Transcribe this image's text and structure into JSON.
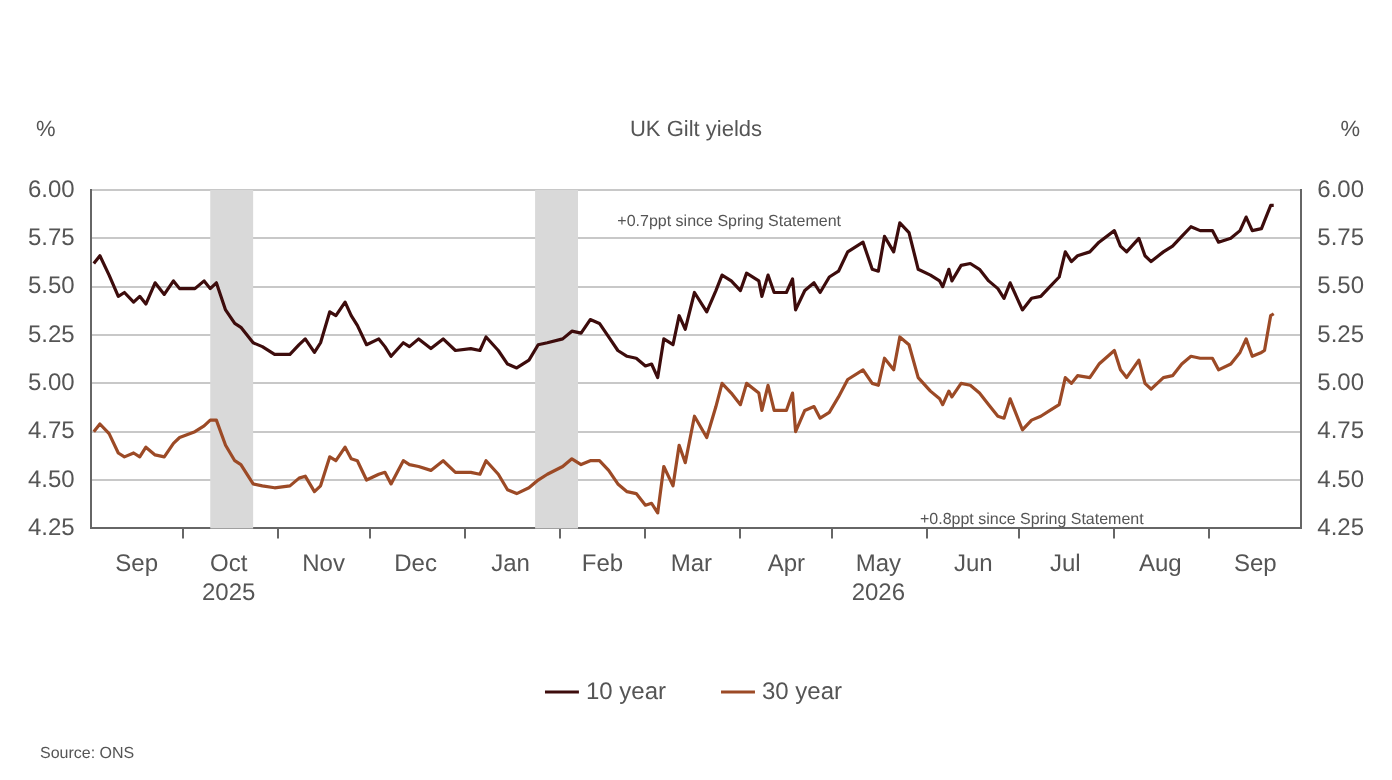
{
  "chart_data": {
    "type": "line",
    "title": "UK Gilt yields",
    "ylabel": "%",
    "y2label": "%",
    "annotations": [
      "+0.7ppt since Spring Statement",
      "+0.8ppt since Spring Statement",
      "Source: ONS"
    ],
    "x": [
      "2025-09-02",
      "2025-09-04",
      "2025-09-07",
      "2025-09-10",
      "2025-09-12",
      "2025-09-15",
      "2025-09-17",
      "2025-09-19",
      "2025-09-22",
      "2025-09-25",
      "2025-09-28",
      "2025-09-30",
      "2025-10-05",
      "2025-10-08",
      "2025-10-10",
      "2025-10-12",
      "2025-10-15",
      "2025-10-18",
      "2025-10-20",
      "2025-10-24",
      "2025-10-27",
      "2025-10-31",
      "2025-11-05",
      "2025-11-08",
      "2025-11-10",
      "2025-11-13",
      "2025-11-15",
      "2025-11-18",
      "2025-11-20",
      "2025-11-23",
      "2025-11-25",
      "2025-11-27",
      "2025-11-30",
      "2025-12-04",
      "2025-12-06",
      "2025-12-08",
      "2025-12-12",
      "2025-12-14",
      "2025-12-17",
      "2025-12-21",
      "2025-12-25",
      "2025-12-29",
      "2026-01-03",
      "2026-01-06",
      "2026-01-08",
      "2026-01-12",
      "2026-01-15",
      "2026-01-18",
      "2026-01-22",
      "2026-01-25",
      "2026-01-28",
      "2026-02-02",
      "2026-02-05",
      "2026-02-08",
      "2026-02-11",
      "2026-02-14",
      "2026-02-17",
      "2026-02-20",
      "2026-02-23",
      "2026-02-26",
      "2026-03-01",
      "2026-03-03",
      "2026-03-05",
      "2026-03-07",
      "2026-03-10",
      "2026-03-12",
      "2026-03-14",
      "2026-03-17",
      "2026-03-21",
      "2026-03-24",
      "2026-03-26",
      "2026-03-29",
      "2026-04-01",
      "2026-04-03",
      "2026-04-07",
      "2026-04-08",
      "2026-04-10",
      "2026-04-12",
      "2026-04-16",
      "2026-04-18",
      "2026-04-19",
      "2026-04-22",
      "2026-04-25",
      "2026-04-27",
      "2026-04-30",
      "2026-05-03",
      "2026-05-06",
      "2026-05-11",
      "2026-05-14",
      "2026-05-16",
      "2026-05-18",
      "2026-05-21",
      "2026-05-23",
      "2026-05-26",
      "2026-05-29",
      "2026-06-02",
      "2026-06-05",
      "2026-06-06",
      "2026-06-08",
      "2026-06-09",
      "2026-06-12",
      "2026-06-15",
      "2026-06-18",
      "2026-06-21",
      "2026-06-24",
      "2026-06-26",
      "2026-06-28",
      "2026-07-02",
      "2026-07-05",
      "2026-07-08",
      "2026-07-11",
      "2026-07-14",
      "2026-07-16",
      "2026-07-18",
      "2026-07-20",
      "2026-07-24",
      "2026-07-27",
      "2026-08-01",
      "2026-08-03",
      "2026-08-05",
      "2026-08-09",
      "2026-08-11",
      "2026-08-13",
      "2026-08-17",
      "2026-08-20",
      "2026-08-23",
      "2026-08-26",
      "2026-08-29",
      "2026-09-02",
      "2026-09-04",
      "2026-09-08",
      "2026-09-11",
      "2026-09-13",
      "2026-09-15",
      "2026-09-18",
      "2026-09-19",
      "2026-09-21",
      "2026-09-22"
    ],
    "series": [
      {
        "name": "10 year",
        "color": "#3d0c0c",
        "values": [
          5.62,
          5.66,
          5.56,
          5.45,
          5.47,
          5.42,
          5.45,
          5.41,
          5.52,
          5.46,
          5.53,
          5.49,
          5.49,
          5.53,
          5.49,
          5.52,
          5.38,
          5.31,
          5.29,
          5.21,
          5.19,
          5.15,
          5.15,
          5.2,
          5.23,
          5.16,
          5.21,
          5.37,
          5.35,
          5.42,
          5.35,
          5.3,
          5.2,
          5.23,
          5.19,
          5.14,
          5.21,
          5.19,
          5.23,
          5.18,
          5.23,
          5.17,
          5.18,
          5.17,
          5.24,
          5.17,
          5.1,
          5.08,
          5.12,
          5.2,
          5.21,
          5.23,
          5.27,
          5.26,
          5.33,
          5.31,
          5.24,
          5.17,
          5.14,
          5.13,
          5.09,
          5.1,
          5.03,
          5.23,
          5.2,
          5.35,
          5.28,
          5.47,
          5.37,
          5.48,
          5.56,
          5.53,
          5.48,
          5.57,
          5.53,
          5.45,
          5.56,
          5.47,
          5.47,
          5.54,
          5.38,
          5.48,
          5.52,
          5.47,
          5.55,
          5.58,
          5.68,
          5.73,
          5.59,
          5.58,
          5.76,
          5.68,
          5.83,
          5.78,
          5.59,
          5.56,
          5.53,
          5.5,
          5.59,
          5.53,
          5.61,
          5.62,
          5.59,
          5.53,
          5.49,
          5.44,
          5.52,
          5.38,
          5.44,
          5.45,
          5.5,
          5.55,
          5.68,
          5.63,
          5.66,
          5.68,
          5.73,
          5.79,
          5.71,
          5.68,
          5.75,
          5.66,
          5.63,
          5.68,
          5.71,
          5.76,
          5.81,
          5.79,
          5.79,
          5.73,
          5.75,
          5.79,
          5.86,
          5.79,
          5.8,
          5.84,
          5.92,
          5.92
        ]
      },
      {
        "name": "30 year",
        "color": "#9c4a26",
        "values": [
          4.75,
          4.79,
          4.74,
          4.64,
          4.62,
          4.64,
          4.62,
          4.67,
          4.63,
          4.62,
          4.69,
          4.72,
          4.75,
          4.78,
          4.81,
          4.81,
          4.68,
          4.6,
          4.58,
          4.48,
          4.47,
          4.46,
          4.47,
          4.51,
          4.52,
          4.44,
          4.47,
          4.62,
          4.6,
          4.67,
          4.61,
          4.6,
          4.5,
          4.53,
          4.54,
          4.48,
          4.6,
          4.58,
          4.57,
          4.55,
          4.6,
          4.54,
          4.54,
          4.53,
          4.6,
          4.53,
          4.45,
          4.43,
          4.46,
          4.5,
          4.53,
          4.57,
          4.61,
          4.58,
          4.6,
          4.6,
          4.55,
          4.48,
          4.44,
          4.43,
          4.37,
          4.38,
          4.33,
          4.57,
          4.47,
          4.68,
          4.59,
          4.83,
          4.72,
          4.88,
          5.0,
          4.95,
          4.89,
          5.0,
          4.95,
          4.86,
          4.99,
          4.86,
          4.86,
          4.95,
          4.75,
          4.86,
          4.88,
          4.82,
          4.85,
          4.93,
          5.02,
          5.07,
          5.0,
          4.99,
          5.13,
          5.07,
          5.24,
          5.2,
          5.03,
          4.96,
          4.92,
          4.89,
          4.96,
          4.93,
          5.0,
          4.99,
          4.95,
          4.89,
          4.83,
          4.82,
          4.92,
          4.76,
          4.81,
          4.83,
          4.86,
          4.89,
          5.03,
          5.0,
          5.04,
          5.03,
          5.1,
          5.17,
          5.07,
          5.03,
          5.12,
          5.0,
          4.97,
          5.03,
          5.04,
          5.1,
          5.14,
          5.13,
          5.13,
          5.07,
          5.1,
          5.16,
          5.23,
          5.14,
          5.16,
          5.17,
          5.35,
          5.36
        ]
      }
    ],
    "xlim": [
      "2025-09-01",
      "2026-10-01"
    ],
    "xticks": [
      {
        "value": "2025-09-16",
        "label": "Sep"
      },
      {
        "value": "2025-10-01",
        "label": null
      },
      {
        "value": "2025-10-16",
        "label": "Oct\n2025"
      },
      {
        "value": "2025-11-01",
        "label": null
      },
      {
        "value": "2025-11-16",
        "label": "Nov"
      },
      {
        "value": "2025-12-01",
        "label": null
      },
      {
        "value": "2025-12-16",
        "label": "Dec"
      },
      {
        "value": "2026-01-01",
        "label": null
      },
      {
        "value": "2026-01-16",
        "label": "Jan"
      },
      {
        "value": "2026-02-01",
        "label": null
      },
      {
        "value": "2026-02-15",
        "label": "Feb"
      },
      {
        "value": "2026-03-01",
        "label": null
      },
      {
        "value": "2026-03-16",
        "label": "Mar"
      },
      {
        "value": "2026-04-01",
        "label": null
      },
      {
        "value": "2026-04-16",
        "label": "Apr"
      },
      {
        "value": "2026-05-01",
        "label": null
      },
      {
        "value": "2026-05-16",
        "label": "May\n2026"
      },
      {
        "value": "2026-06-01",
        "label": null
      },
      {
        "value": "2026-06-16",
        "label": "Jun"
      },
      {
        "value": "2026-07-01",
        "label": null
      },
      {
        "value": "2026-07-16",
        "label": "Jul"
      },
      {
        "value": "2026-08-01",
        "label": null
      },
      {
        "value": "2026-08-16",
        "label": "Aug"
      },
      {
        "value": "2026-09-01",
        "label": null
      },
      {
        "value": "2026-09-16",
        "label": "Sep"
      }
    ],
    "ylim": [
      4.25,
      6.0
    ],
    "yticks": [
      {
        "value": 4.25,
        "label": "4.25"
      },
      {
        "value": 4.5,
        "label": "4.50"
      },
      {
        "value": 4.75,
        "label": "4.75"
      },
      {
        "value": 5,
        "label": "5.00"
      },
      {
        "value": 5.25,
        "label": "5.25"
      },
      {
        "value": 5.5,
        "label": "5.50"
      },
      {
        "value": 5.75,
        "label": "5.75"
      },
      {
        "value": 6,
        "label": "6.00"
      }
    ],
    "y2lim": [
      4.25,
      6.0
    ],
    "y2ticks": [
      {
        "value": 4.25,
        "label": "4.25"
      },
      {
        "value": 4.5,
        "label": "4.50"
      },
      {
        "value": 4.75,
        "label": "4.75"
      },
      {
        "value": 5,
        "label": "5.00"
      },
      {
        "value": 5.25,
        "label": "5.25"
      },
      {
        "value": 5.5,
        "label": "5.50"
      },
      {
        "value": 5.75,
        "label": "5.75"
      },
      {
        "value": 6,
        "label": "6.00"
      }
    ],
    "bands": [
      {
        "axis": "x",
        "from": "2025-10-10",
        "to": "2025-10-24",
        "color": "#d9d9d9"
      },
      {
        "axis": "x",
        "from": "2026-01-24",
        "to": "2026-02-07",
        "color": "#d9d9d9"
      }
    ],
    "grid": "y",
    "legend": "bottom"
  }
}
